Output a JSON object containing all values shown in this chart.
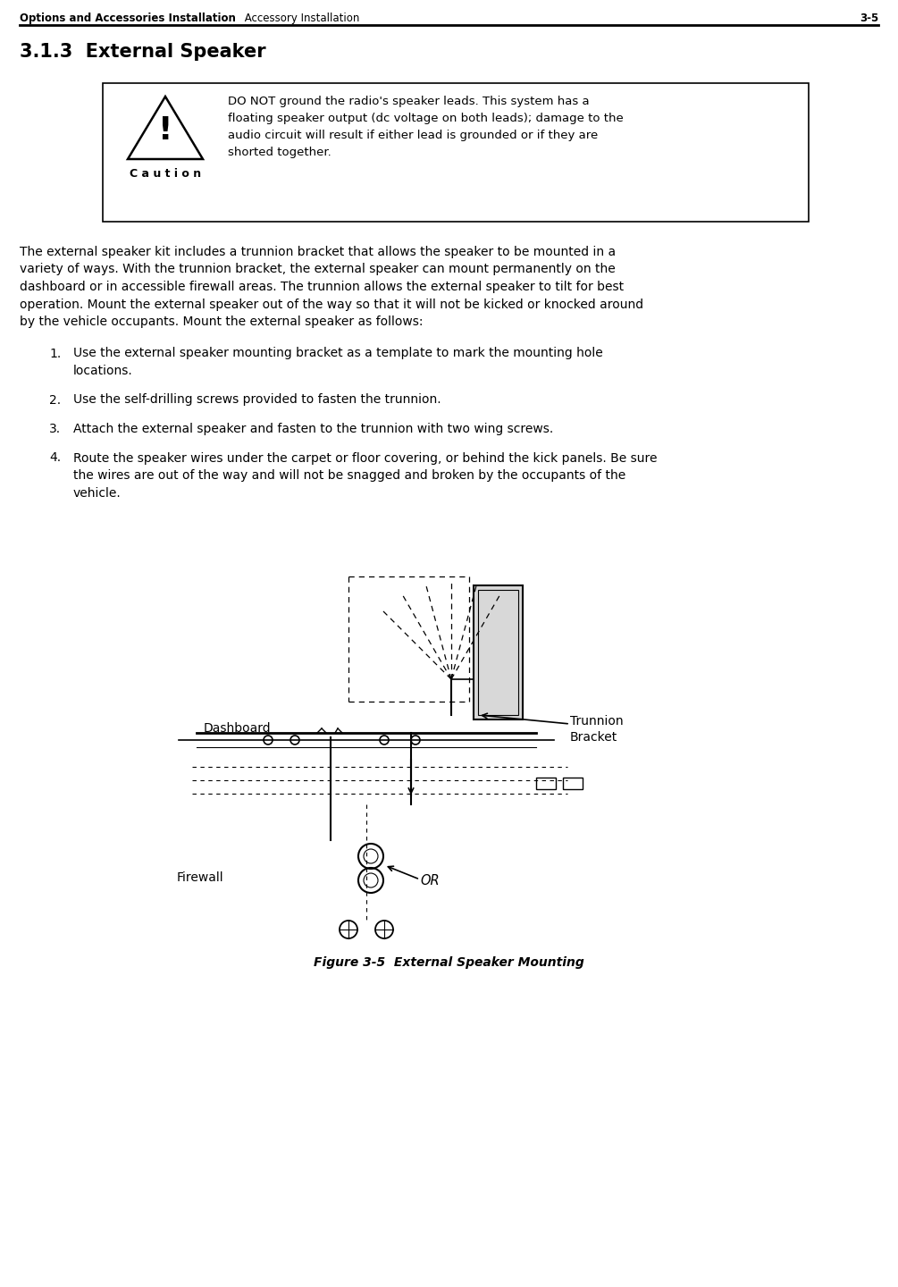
{
  "header_bold": "Options and Accessories Installation",
  "header_normal": " Accessory Installation",
  "header_right": "3-5",
  "section_title": "3.1.3  External Speaker",
  "caution_title": "C a u t i o n",
  "caution_line1": "DO NOT ground the radio's speaker leads. This system has a",
  "caution_line2": "floating speaker output (dc voltage on both leads); damage to the",
  "caution_line3": "audio circuit will result if either lead is grounded or if they are",
  "caution_line4": "shorted together.",
  "body_para": "The external speaker kit includes a trunnion bracket that allows the speaker to be mounted in a variety of ways. With the trunnion bracket, the external speaker can mount permanently on the dashboard or in accessible firewall areas. The trunnion allows the external speaker to tilt for best operation. Mount the external speaker out of the way so that it will not be kicked or knocked around by the vehicle occupants. Mount the external speaker as follows:",
  "item1": "Use the external speaker mounting bracket as a template to mark the mounting hole\nlocations.",
  "item2": "Use the self-drilling screws provided to fasten the trunnion.",
  "item3": "Attach the external speaker and fasten to the trunnion with two wing screws.",
  "item4": "Route the speaker wires under the carpet or floor covering, or behind the kick panels. Be sure\nthe wires are out of the way and will not be snagged and broken by the occupants of the\nvehicle.",
  "fig_caption": "Figure 3-5  External Speaker Mounting",
  "label_dashboard": "Dashboard",
  "label_firewall": "Firewall",
  "label_trunnion": "Trunnion\nBracket",
  "label_or": "OR",
  "bg": "#ffffff",
  "fg": "#000000"
}
